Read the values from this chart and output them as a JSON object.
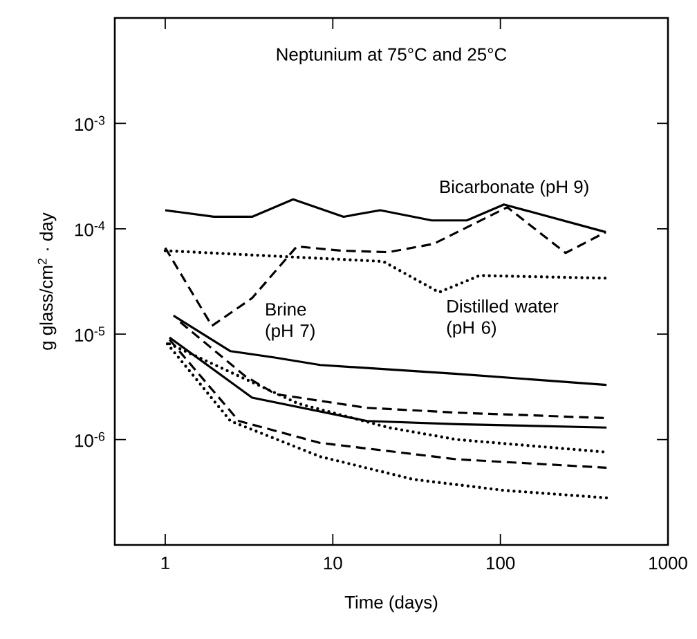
{
  "chart_data": {
    "type": "line",
    "title": "Neptunium at 75°C and 25°C",
    "xlabel": "Time (days)",
    "ylabel": "g glass/cm$^{2}$ · day",
    "log": "xy",
    "xlim": [
      0.5,
      1000
    ],
    "ylim": [
      1e-07,
      0.01
    ],
    "xticks": [
      1,
      10,
      100,
      1000
    ],
    "yticks": [
      {
        "value": 0.001,
        "label": "10$^{-3}$"
      },
      {
        "value": 0.0001,
        "label": "10$^{-4}$"
      },
      {
        "value": 1e-05,
        "label": "10$^{-5}$"
      },
      {
        "value": 1e-06,
        "label": "10$^{-6}$"
      }
    ],
    "series": [
      {
        "name": "Bicarbonate (pH 9)",
        "color": "#000000",
        "line_style": "solid",
        "x": [
          1,
          1.95,
          3.3,
          5.8,
          11.6,
          19.2,
          39,
          63,
          105,
          426
        ],
        "values": [
          0.00015,
          0.00013,
          0.00013,
          0.00019,
          0.00013,
          0.00015,
          0.00012,
          0.00012,
          0.00017,
          9.3e-05
        ]
      },
      {
        "name": "Brine (pH 7)",
        "color": "#000000",
        "line_style": "dashed",
        "x": [
          1,
          1.9,
          3.3,
          6.1,
          11.2,
          21.5,
          40,
          110,
          245,
          426
        ],
        "values": [
          6.6e-05,
          1.2e-05,
          2.2e-05,
          6.8e-05,
          6.2e-05,
          6e-05,
          7.2e-05,
          0.00016,
          5.9e-05,
          9.3e-05
        ]
      },
      {
        "name": "Distilled water (pH 6)",
        "color": "#000000",
        "line_style": "dotted",
        "x": [
          1,
          4.55,
          20,
          43,
          63,
          75,
          430
        ],
        "values": [
          6.2e-05,
          5.5e-05,
          4.9e-05,
          2.5e-05,
          3.2e-05,
          3.6e-05,
          3.4e-05
        ]
      },
      {
        "color": "#000000",
        "line_style": "solid",
        "x": [
          1.12,
          2.45,
          4.5,
          8.4,
          55,
          430
        ],
        "values": [
          1.5e-05,
          6.9e-06,
          6e-06,
          5.1e-06,
          4.2e-06,
          3.3e-06
        ]
      },
      {
        "color": "#000000",
        "line_style": "dashed",
        "x": [
          1.23,
          3,
          4.55,
          16,
          55,
          430
        ],
        "values": [
          1.3e-05,
          4e-06,
          2.7e-06,
          2e-06,
          1.8e-06,
          1.6e-06
        ]
      },
      {
        "color": "#000000",
        "line_style": "solid",
        "x": [
          1.06,
          3.3,
          16,
          55,
          430
        ],
        "values": [
          9.3e-06,
          2.5e-06,
          1.5e-06,
          1.4e-06,
          1.3e-06
        ]
      },
      {
        "color": "#000000",
        "line_style": "dotted",
        "x": [
          1.06,
          6.2,
          21.5,
          55,
          430
        ],
        "values": [
          8.1e-06,
          2.2e-06,
          1.3e-06,
          1e-06,
          7.6e-07
        ]
      },
      {
        "color": "#000000",
        "line_style": "dashed",
        "x": [
          1.06,
          2.75,
          8.4,
          55,
          430
        ],
        "values": [
          8.9e-06,
          1.5e-06,
          9.3e-07,
          6.5e-07,
          5.4e-07
        ]
      },
      {
        "color": "#000000",
        "line_style": "dotted",
        "x": [
          1.03,
          2.45,
          8.4,
          30,
          104,
          430
        ],
        "values": [
          8.1e-06,
          1.5e-06,
          6.9e-07,
          4.2e-07,
          3.3e-07,
          2.8e-07
        ]
      }
    ]
  }
}
